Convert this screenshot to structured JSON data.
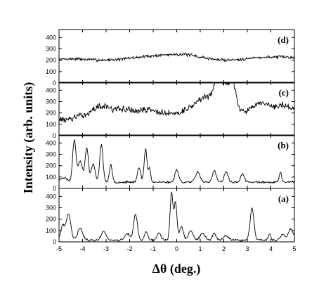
{
  "chart_data": {
    "type": "line",
    "xlabel": "Δθ (deg.)",
    "ylabel": "Intensity (arb. units)",
    "xlim": [
      -5,
      5
    ],
    "x_ticks": [
      -5,
      -4,
      -3,
      -2,
      -1,
      0,
      1,
      2,
      3,
      4,
      5
    ],
    "y_ticks": [
      0,
      100,
      200,
      300,
      400
    ],
    "grid": false,
    "panels": [
      {
        "label": "(d)",
        "ylim": [
          0,
          470
        ],
        "baseline": 210,
        "slope": 3,
        "noise": 18,
        "seed": 7,
        "peaks": [
          [
            -4.5,
            15,
            0.6
          ],
          [
            -1.5,
            15,
            0.6
          ],
          [
            0.1,
            45,
            0.9
          ],
          [
            2.0,
            -20,
            1.0
          ],
          [
            3.5,
            10,
            0.8
          ]
        ]
      },
      {
        "label": "(c)",
        "ylim": [
          0,
          470
        ],
        "baseline": 195,
        "slope": 5,
        "noise": 35,
        "seed": 13,
        "peaks": [
          [
            -3.2,
            80,
            0.35
          ],
          [
            -2.2,
            50,
            0.4
          ],
          [
            -1.2,
            40,
            0.3
          ],
          [
            0.8,
            60,
            0.4
          ],
          [
            1.4,
            120,
            0.35
          ],
          [
            1.75,
            210,
            0.15
          ],
          [
            2.1,
            200,
            0.2
          ],
          [
            2.4,
            190,
            0.15
          ],
          [
            3.6,
            70,
            0.3
          ],
          [
            4.5,
            50,
            0.3
          ],
          [
            -4.7,
            -30,
            0.3
          ]
        ]
      },
      {
        "label": "(b)",
        "ylim": [
          0,
          470
        ],
        "baseline": 55,
        "slope": 0,
        "noise": 12,
        "seed": 23,
        "peaks": [
          [
            -4.8,
            40,
            0.15
          ],
          [
            -4.35,
            370,
            0.07
          ],
          [
            -4.1,
            180,
            0.1
          ],
          [
            -3.82,
            300,
            0.07
          ],
          [
            -3.55,
            160,
            0.08
          ],
          [
            -3.2,
            330,
            0.07
          ],
          [
            -2.8,
            150,
            0.06
          ],
          [
            -1.6,
            130,
            0.07
          ],
          [
            -1.32,
            290,
            0.06
          ],
          [
            -1.15,
            120,
            0.05
          ],
          [
            0.0,
            110,
            0.08
          ],
          [
            0.9,
            90,
            0.1
          ],
          [
            1.6,
            100,
            0.08
          ],
          [
            2.1,
            90,
            0.08
          ],
          [
            2.8,
            70,
            0.08
          ],
          [
            4.4,
            90,
            0.05
          ]
        ]
      },
      {
        "label": "(a)",
        "ylim": [
          0,
          470
        ],
        "baseline": 15,
        "slope": 0,
        "noise": 12,
        "seed": 41,
        "peaks": [
          [
            -4.85,
            120,
            0.08
          ],
          [
            -4.6,
            230,
            0.1
          ],
          [
            -4.1,
            110,
            0.1
          ],
          [
            -3.1,
            80,
            0.1
          ],
          [
            -2.1,
            60,
            0.1
          ],
          [
            -1.75,
            230,
            0.08
          ],
          [
            -1.3,
            70,
            0.07
          ],
          [
            -0.75,
            70,
            0.08
          ],
          [
            -0.22,
            420,
            0.06
          ],
          [
            -0.05,
            330,
            0.06
          ],
          [
            0.2,
            120,
            0.08
          ],
          [
            0.6,
            80,
            0.1
          ],
          [
            1.1,
            60,
            0.1
          ],
          [
            1.6,
            60,
            0.08
          ],
          [
            2.1,
            40,
            0.1
          ],
          [
            3.2,
            280,
            0.08
          ],
          [
            3.95,
            60,
            0.05
          ],
          [
            4.5,
            50,
            0.1
          ],
          [
            4.85,
            100,
            0.1
          ]
        ]
      }
    ]
  }
}
